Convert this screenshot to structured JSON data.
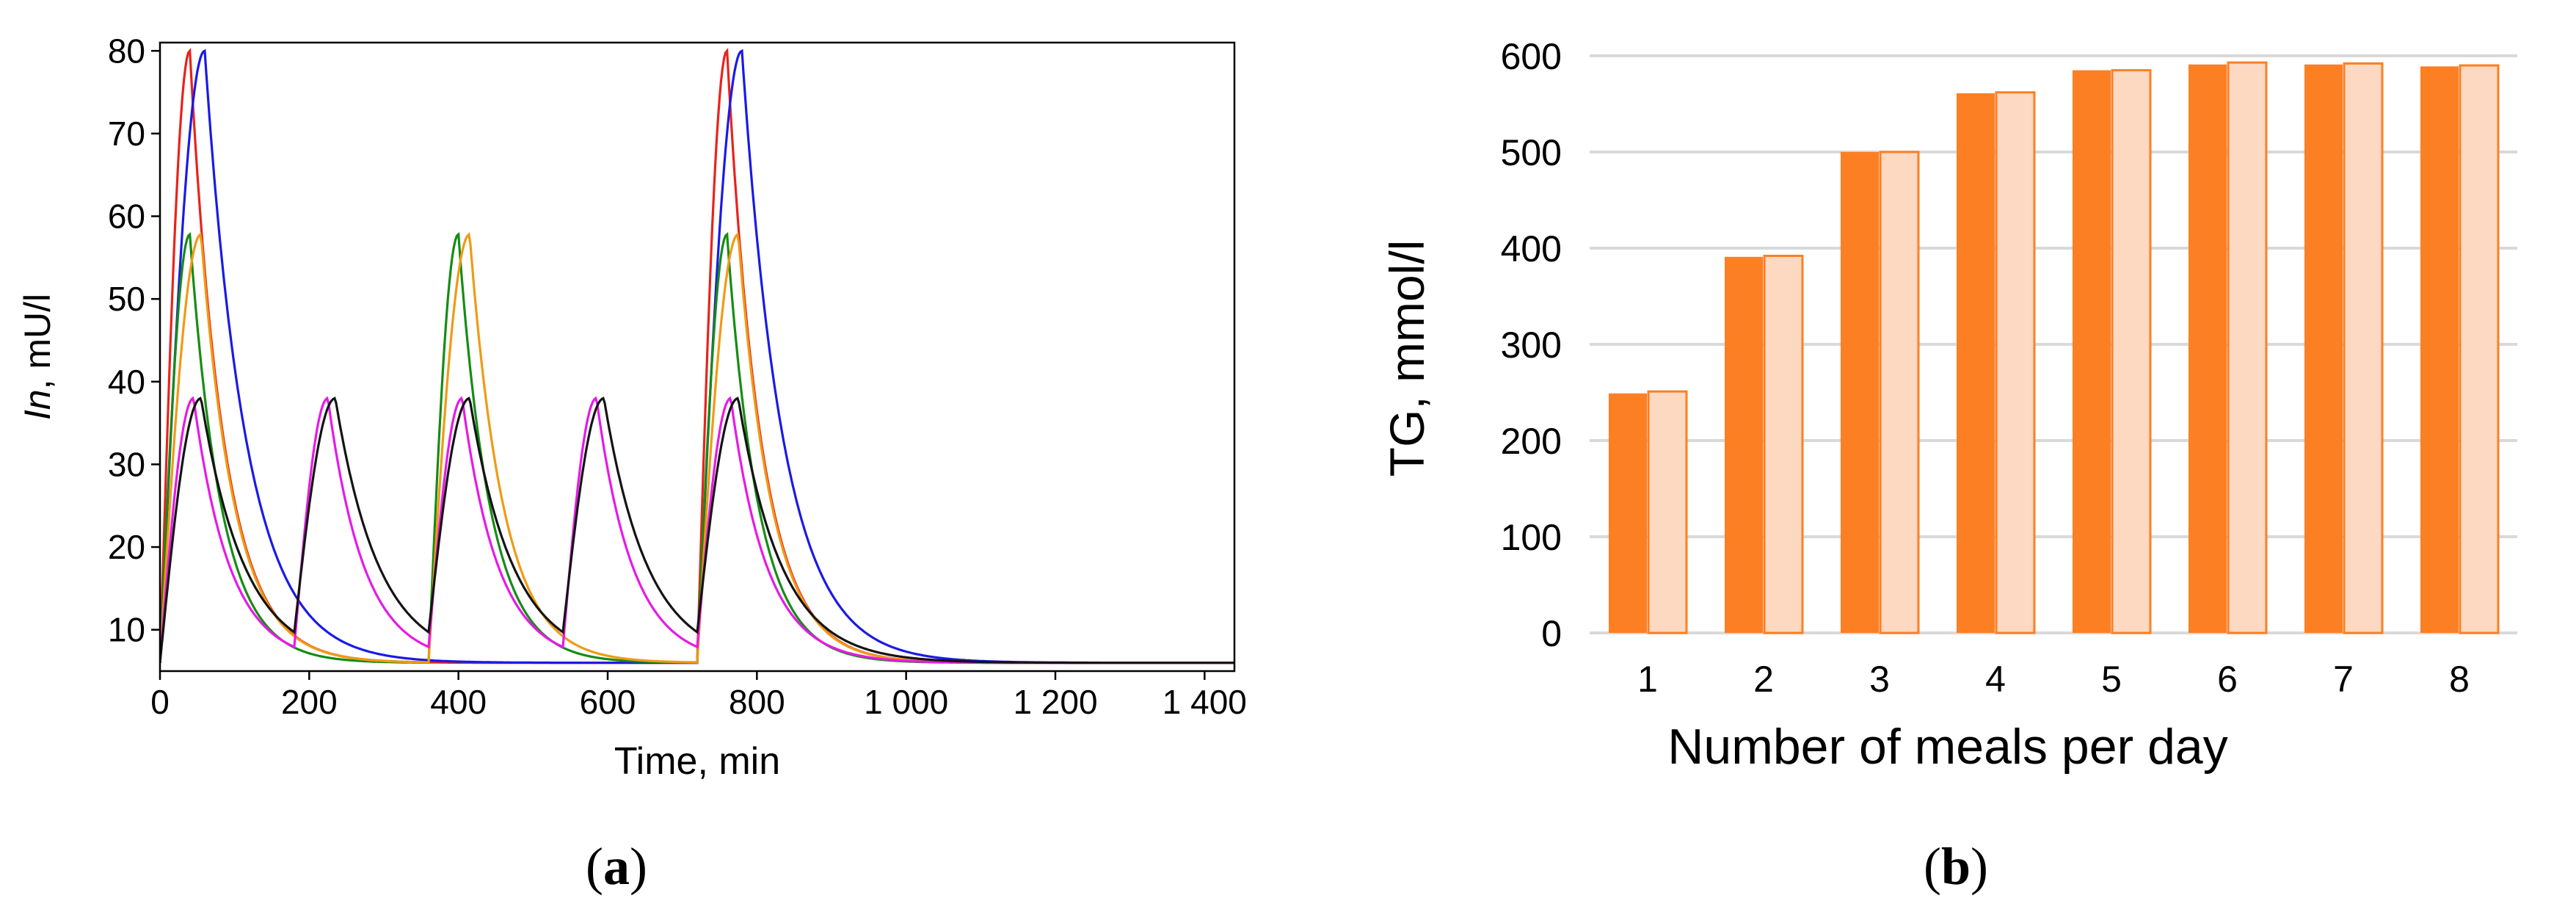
{
  "chart_data": [
    {
      "type": "line",
      "panel_label": "(a)",
      "panel_letter": "a",
      "title": "",
      "xlabel": "Time, min",
      "ylabel_italic": "In",
      "ylabel_rest": ", mU/l",
      "xlim": [
        0,
        1440
      ],
      "ylim": [
        5,
        81
      ],
      "xticks": [
        0,
        200,
        400,
        600,
        800,
        1000,
        1200,
        1400
      ],
      "xtick_labels": [
        "0",
        "200",
        "400",
        "600",
        "800",
        "1 000",
        "1 200",
        "1 400"
      ],
      "yticks": [
        10,
        20,
        30,
        40,
        50,
        60,
        70,
        80
      ],
      "ytick_labels": [
        "10",
        "20",
        "30",
        "40",
        "50",
        "60",
        "70",
        "80"
      ],
      "basal": 6,
      "series": [
        {
          "name": "red",
          "color": "#e8231b",
          "meals": [
            0,
            720
          ],
          "peak": 80,
          "tpeak": 40,
          "tau": 45
        },
        {
          "name": "blue",
          "color": "#1a1ae6",
          "meals": [
            0,
            720
          ],
          "peak": 80,
          "tpeak": 60,
          "tau": 55
        },
        {
          "name": "green",
          "color": "#158c15",
          "meals": [
            0,
            360,
            720
          ],
          "peak": 57.8,
          "tpeak": 40,
          "tau": 42
        },
        {
          "name": "orange",
          "color": "#f09a14",
          "meals": [
            0,
            360,
            720
          ],
          "peak": 57.8,
          "tpeak": 55,
          "tau": 45
        },
        {
          "name": "magenta",
          "color": "#e61ae6",
          "meals": [
            0,
            180,
            360,
            540,
            720
          ],
          "peak": 38,
          "tpeak": 45,
          "tau": 48
        },
        {
          "name": "black",
          "color": "#141414",
          "meals": [
            0,
            180,
            360,
            540,
            720
          ],
          "peak": 38,
          "tpeak": 55,
          "tau": 58
        }
      ]
    },
    {
      "type": "bar",
      "panel_label": "(b)",
      "panel_letter": "b",
      "title": "",
      "xlabel": "Number of meals per day",
      "ylabel": "TG, mmol/l",
      "ylim": [
        0,
        600
      ],
      "yticks": [
        0,
        100,
        200,
        300,
        400,
        500,
        600
      ],
      "categories": [
        "1",
        "2",
        "3",
        "4",
        "5",
        "6",
        "7",
        "8"
      ],
      "series": [
        {
          "name": "series 1",
          "color": "#fd7f23",
          "values": [
            249,
            391,
            500,
            561,
            585,
            591,
            591,
            589
          ]
        },
        {
          "name": "series 2",
          "color": "#fdd9c2",
          "edge": "#fd7f23",
          "values": [
            251,
            392,
            500,
            562,
            585,
            593,
            592,
            590
          ]
        }
      ]
    }
  ]
}
